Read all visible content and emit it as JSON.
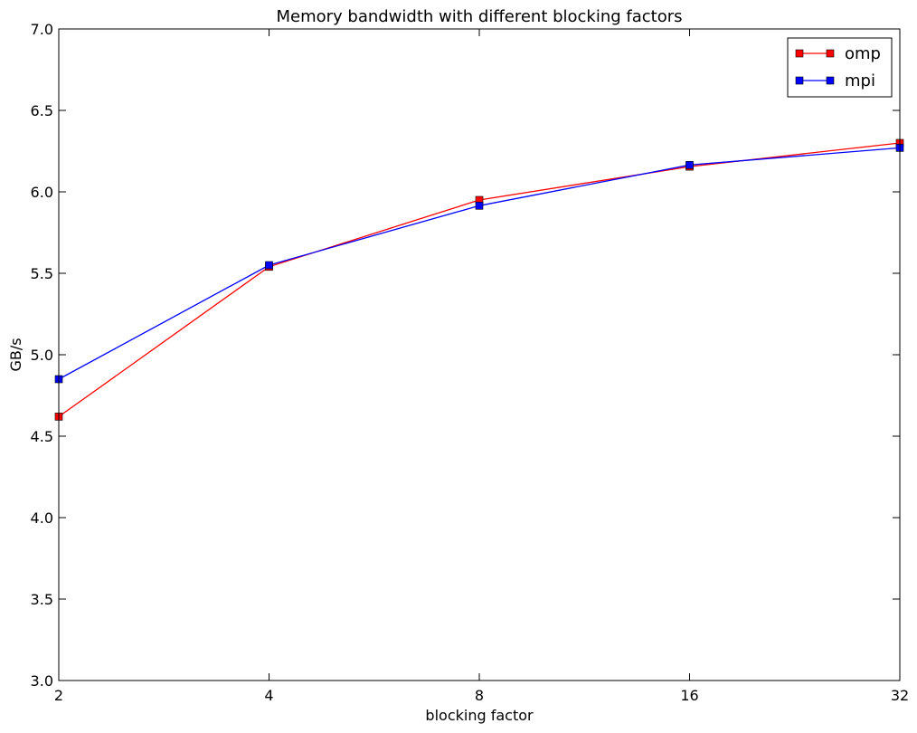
{
  "chart_data": {
    "type": "line",
    "title": "Memory bandwidth with different blocking factors",
    "xlabel": "blocking factor",
    "ylabel": "GB/s",
    "x": [
      2,
      4,
      8,
      16,
      32
    ],
    "x_scale": "log2",
    "xticks": [
      "2",
      "4",
      "8",
      "16",
      "32"
    ],
    "xlim": [
      2,
      32
    ],
    "ylim": [
      3.0,
      7.0
    ],
    "yticks": [
      "3.0",
      "3.5",
      "4.0",
      "4.5",
      "5.0",
      "5.5",
      "6.0",
      "6.5",
      "7.0"
    ],
    "grid": false,
    "legend_position": "top-right",
    "series": [
      {
        "name": "omp",
        "color": "#ff0000",
        "marker": "square",
        "values": [
          4.62,
          5.54,
          5.95,
          6.155,
          6.3
        ]
      },
      {
        "name": "mpi",
        "color": "#0000ff",
        "marker": "square",
        "values": [
          4.85,
          5.55,
          5.915,
          6.165,
          6.27
        ]
      }
    ]
  }
}
